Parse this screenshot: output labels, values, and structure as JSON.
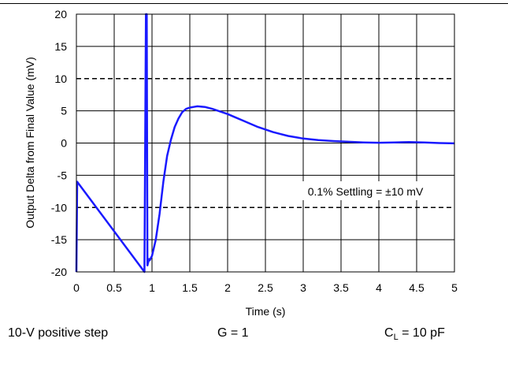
{
  "chart_data": {
    "type": "line",
    "xlabel": "Time (s)",
    "ylabel": "Output Delta from Final Value (mV)",
    "xlim": [
      0,
      5
    ],
    "ylim": [
      -20,
      20
    ],
    "xticks": [
      0,
      0.5,
      1,
      1.5,
      2,
      2.5,
      3,
      3.5,
      4,
      4.5,
      5
    ],
    "xtick_labels": [
      "0",
      "0.5",
      "1",
      "1.5",
      "2",
      "2.5",
      "3",
      "3.5",
      "4",
      "4.5",
      "5"
    ],
    "yticks": [
      -20,
      -15,
      -10,
      -5,
      0,
      5,
      10,
      15,
      20
    ],
    "ytick_labels": [
      "-20",
      "-15",
      "-10",
      "-5",
      "0",
      "5",
      "10",
      "15",
      "20"
    ],
    "grid": true,
    "series_color": "#1a1aff",
    "reference_lines": [
      10,
      -10
    ],
    "annotation": "0.1% Settling = ±10 mV",
    "series": [
      {
        "x": [
          0,
          0.01,
          0.9,
          0.92,
          0.93,
          0.94,
          0.95,
          0.96,
          0.97,
          1.0,
          1.05,
          1.1,
          1.15,
          1.2,
          1.25,
          1.3,
          1.35,
          1.4,
          1.45,
          1.5,
          1.55,
          1.6,
          1.7,
          1.8,
          1.9,
          2.0,
          2.1,
          2.2,
          2.3,
          2.4,
          2.5,
          2.6,
          2.7,
          2.8,
          2.9,
          3.0,
          3.2,
          3.4,
          3.6,
          3.8,
          4.0,
          4.2,
          4.4,
          4.6,
          4.8,
          5.0
        ],
        "y": [
          -20,
          -6,
          -20,
          20,
          20,
          -19,
          -18.5,
          -18,
          -18.2,
          -17.5,
          -15,
          -11,
          -6,
          -2,
          0.5,
          2.5,
          3.8,
          4.8,
          5.3,
          5.5,
          5.6,
          5.7,
          5.6,
          5.3,
          4.9,
          4.5,
          4.0,
          3.5,
          3.0,
          2.5,
          2.1,
          1.7,
          1.4,
          1.1,
          0.9,
          0.7,
          0.45,
          0.3,
          0.2,
          0.1,
          0.05,
          0.1,
          0.15,
          0.1,
          0.0,
          -0.05
        ]
      }
    ]
  },
  "conditions": {
    "step": "10-V positive step",
    "gain": "G = 1",
    "load_prefix": "C",
    "load_sub": "L",
    "load_suffix": " = 10 pF"
  }
}
